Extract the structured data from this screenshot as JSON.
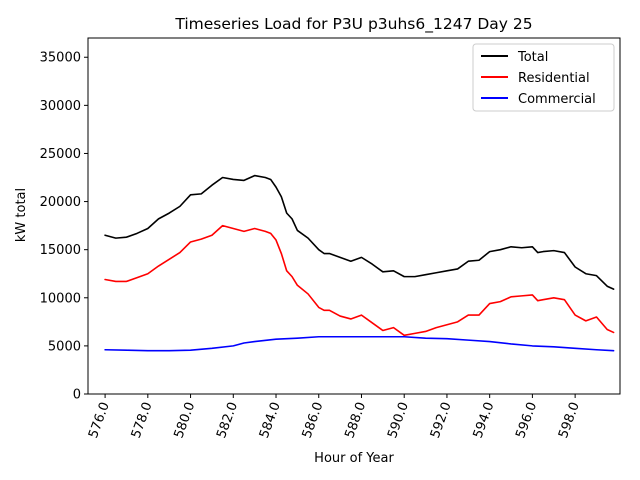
{
  "chart_data": {
    "type": "line",
    "title": "Timeseries Load for P3U p3uhs6_1247  Day 25",
    "xlabel": "Hour of Year",
    "ylabel": "kW total",
    "xlim": [
      575.2,
      600.1
    ],
    "ylim": [
      0,
      37000
    ],
    "x_ticks": [
      576.0,
      578.0,
      580.0,
      582.0,
      584.0,
      586.0,
      588.0,
      590.0,
      592.0,
      594.0,
      596.0,
      598.0
    ],
    "x_tick_labels": [
      "576.0",
      "578.0",
      "580.0",
      "582.0",
      "584.0",
      "586.0",
      "588.0",
      "590.0",
      "592.0",
      "594.0",
      "596.0",
      "598.0"
    ],
    "y_ticks": [
      0,
      5000,
      10000,
      15000,
      20000,
      25000,
      30000,
      35000
    ],
    "y_tick_labels": [
      "0",
      "5000",
      "10000",
      "15000",
      "20000",
      "25000",
      "30000",
      "35000"
    ],
    "legend_position": "top-right",
    "series": [
      {
        "name": "Total",
        "color": "#000000",
        "x": [
          576.0,
          576.5,
          577.0,
          577.5,
          578.0,
          578.5,
          579.0,
          579.5,
          580.0,
          580.5,
          581.0,
          581.5,
          582.0,
          582.5,
          583.0,
          583.5,
          583.75,
          584.0,
          584.25,
          584.5,
          584.75,
          585.0,
          585.5,
          586.0,
          586.25,
          586.5,
          587.0,
          587.5,
          588.0,
          588.5,
          589.0,
          589.5,
          590.0,
          590.5,
          591.0,
          591.5,
          592.0,
          592.5,
          593.0,
          593.5,
          594.0,
          594.5,
          595.0,
          595.5,
          596.0,
          596.25,
          596.5,
          597.0,
          597.5,
          598.0,
          598.5,
          599.0,
          599.5,
          599.8
        ],
        "y": [
          16500,
          16200,
          16300,
          16700,
          17200,
          18200,
          18800,
          19500,
          20700,
          20800,
          21700,
          22500,
          22300,
          22200,
          22700,
          22500,
          22300,
          21500,
          20500,
          18800,
          18200,
          17000,
          16200,
          15000,
          14600,
          14600,
          14200,
          13800,
          14200,
          13500,
          12700,
          12800,
          12200,
          12200,
          12400,
          12600,
          12800,
          13000,
          13800,
          13900,
          14800,
          15000,
          15300,
          15200,
          15300,
          14700,
          14800,
          14900,
          14700,
          13200,
          12500,
          12300,
          11200,
          10900
        ]
      },
      {
        "name": "Residential",
        "color": "#ff0000",
        "x": [
          576.0,
          576.5,
          577.0,
          577.5,
          578.0,
          578.5,
          579.0,
          579.5,
          580.0,
          580.5,
          581.0,
          581.5,
          582.0,
          582.5,
          583.0,
          583.5,
          583.75,
          584.0,
          584.25,
          584.5,
          584.75,
          585.0,
          585.5,
          586.0,
          586.25,
          586.5,
          587.0,
          587.5,
          588.0,
          588.5,
          589.0,
          589.5,
          590.0,
          590.5,
          591.0,
          591.5,
          592.0,
          592.5,
          593.0,
          593.5,
          594.0,
          594.5,
          595.0,
          595.5,
          596.0,
          596.25,
          596.5,
          597.0,
          597.5,
          598.0,
          598.5,
          599.0,
          599.5,
          599.8
        ],
        "y": [
          11900,
          11700,
          11700,
          12100,
          12500,
          13300,
          14000,
          14700,
          15800,
          16100,
          16500,
          17500,
          17200,
          16900,
          17200,
          16900,
          16700,
          16000,
          14600,
          12800,
          12200,
          11300,
          10400,
          9000,
          8700,
          8700,
          8100,
          7800,
          8200,
          7400,
          6600,
          6900,
          6100,
          6300,
          6500,
          6900,
          7200,
          7500,
          8200,
          8200,
          9400,
          9600,
          10100,
          10200,
          10300,
          9700,
          9800,
          10000,
          9800,
          8200,
          7600,
          8000,
          6700,
          6400
        ]
      },
      {
        "name": "Commercial",
        "color": "#0000ff",
        "x": [
          576.0,
          577.0,
          578.0,
          579.0,
          580.0,
          581.0,
          582.0,
          582.5,
          583.0,
          584.0,
          585.0,
          586.0,
          587.0,
          588.0,
          589.0,
          590.0,
          591.0,
          592.0,
          593.0,
          594.0,
          595.0,
          596.0,
          597.0,
          598.0,
          599.0,
          599.8
        ],
        "y": [
          4600,
          4550,
          4500,
          4500,
          4550,
          4750,
          5000,
          5300,
          5450,
          5700,
          5800,
          5950,
          5950,
          5950,
          5950,
          5950,
          5800,
          5750,
          5600,
          5450,
          5200,
          5000,
          4900,
          4750,
          4600,
          4500
        ]
      }
    ]
  }
}
